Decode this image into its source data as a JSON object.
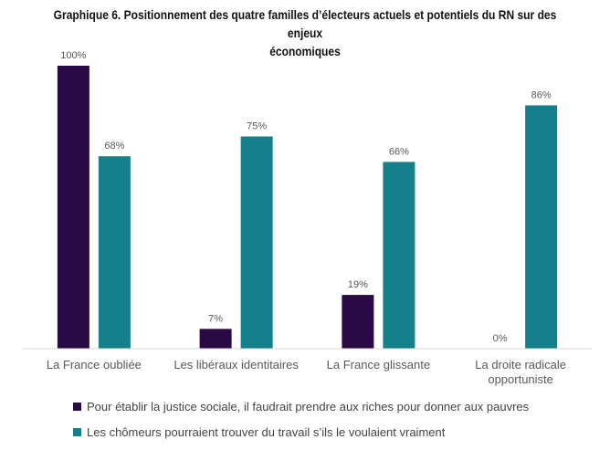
{
  "title_line1": "Graphique 6. Positionnement des quatre familles d’électeurs actuels et potentiels du RN sur des enjeux",
  "title_line2": "économiques",
  "colors": {
    "series1": "#2a0a45",
    "series2": "#13808c",
    "axis": "#d9d9d9",
    "label": "#595959"
  },
  "chart_data": {
    "type": "bar",
    "title": "Graphique 6. Positionnement des quatre familles d’électeurs actuels et potentiels du RN sur des enjeux économiques",
    "categories": [
      [
        "La France oubliée"
      ],
      [
        "Les libéraux identitaires"
      ],
      [
        "La France glissante"
      ],
      [
        "La droite radicale",
        "opportuniste"
      ]
    ],
    "series": [
      {
        "name": "Pour établir la justice sociale, il faudrait prendre aux riches pour donner aux pauvres",
        "values": [
          100,
          7,
          19,
          0
        ],
        "labels": [
          "100%",
          "7%",
          "19%",
          "0%"
        ]
      },
      {
        "name": "Les chômeurs pourraient trouver du travail s’ils le voulaient vraiment",
        "values": [
          68,
          75,
          66,
          86
        ],
        "labels": [
          "68%",
          "75%",
          "66%",
          "86%"
        ]
      }
    ],
    "ylim": [
      0,
      100
    ],
    "grid": false,
    "legend": "bottom"
  }
}
